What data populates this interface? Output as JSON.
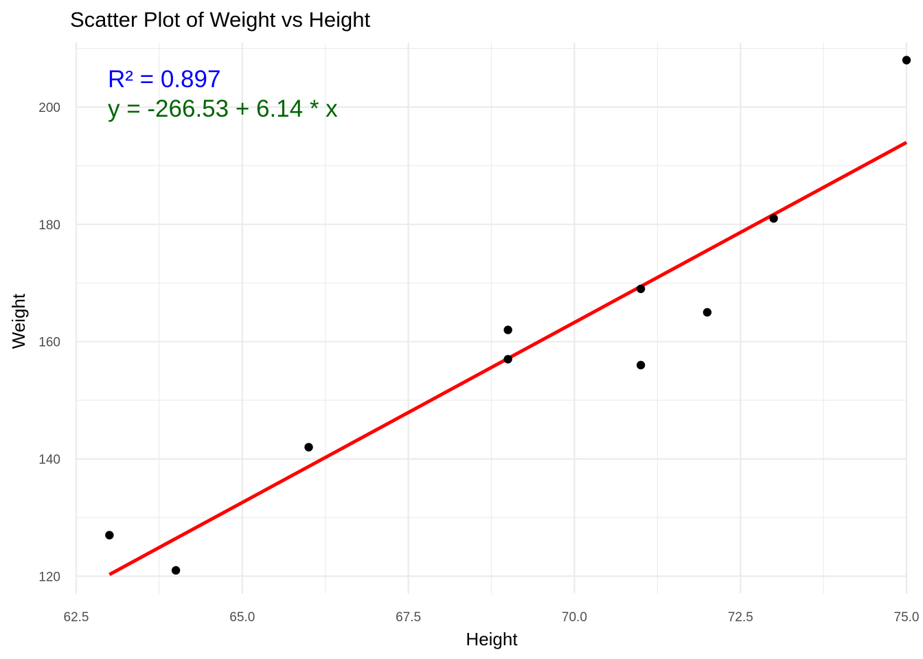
{
  "chart_data": {
    "type": "scatter",
    "title": "Scatter Plot of Weight vs Height",
    "xlabel": "Height",
    "ylabel": "Weight",
    "xlim": [
      62.5,
      75.0
    ],
    "ylim": [
      117,
      211
    ],
    "x_ticks": [
      "62.5",
      "65.0",
      "67.5",
      "70.0",
      "72.5",
      "75.0"
    ],
    "y_ticks": [
      "120",
      "140",
      "160",
      "180",
      "200"
    ],
    "grid": true,
    "points": [
      {
        "x": 63,
        "y": 127
      },
      {
        "x": 64,
        "y": 121
      },
      {
        "x": 66,
        "y": 142
      },
      {
        "x": 69,
        "y": 162
      },
      {
        "x": 69,
        "y": 157
      },
      {
        "x": 71,
        "y": 169
      },
      {
        "x": 71,
        "y": 156
      },
      {
        "x": 72,
        "y": 165
      },
      {
        "x": 73,
        "y": 181
      },
      {
        "x": 75,
        "y": 208
      }
    ],
    "point_color": "#000000",
    "fit_line": {
      "intercept": -266.53,
      "slope": 6.14,
      "x_range": [
        63,
        75
      ],
      "color": "#ff0000"
    },
    "annotations": [
      {
        "text": "R² = 0.897",
        "color": "#0000ff"
      },
      {
        "text": "y = -266.53 + 6.14 * x",
        "color": "#006400"
      }
    ]
  }
}
